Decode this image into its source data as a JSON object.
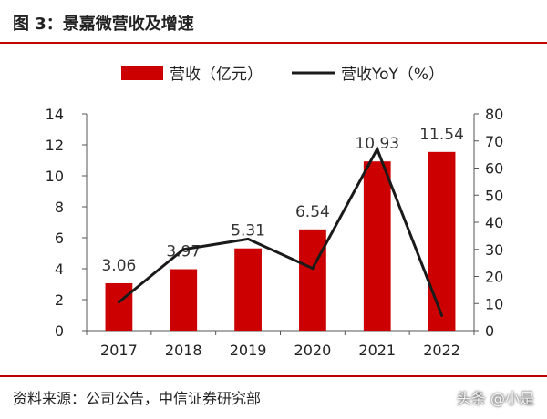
{
  "header": {
    "title": "图 3：景嘉微营收及增速"
  },
  "footer": {
    "source": "资料来源：公司公告，中信证券研究部",
    "watermark": "头条 @小是"
  },
  "colors": {
    "bar": "#cc0000",
    "line": "#1a1a1a",
    "rule": "#c00000"
  },
  "chart_data": {
    "type": "bar",
    "categories": [
      "2017",
      "2018",
      "2019",
      "2020",
      "2021",
      "2022"
    ],
    "series": [
      {
        "name": "营收（亿元）",
        "type": "bar",
        "axis": "left",
        "values": [
          3.06,
          3.97,
          5.31,
          6.54,
          10.93,
          11.54
        ],
        "data_labels": [
          "3.06",
          "3.97",
          "5.31",
          "6.54",
          "10.93",
          "11.54"
        ]
      },
      {
        "name": "营收YoY（%）",
        "type": "line",
        "axis": "right",
        "values": [
          10.5,
          30,
          33.8,
          23,
          67,
          5.6
        ]
      }
    ],
    "y_left": {
      "min": 0,
      "max": 14,
      "ticks": [
        "0",
        "2",
        "4",
        "6",
        "8",
        "10",
        "12",
        "14"
      ]
    },
    "y_right": {
      "min": 0,
      "max": 80,
      "ticks": [
        "0",
        "10",
        "20",
        "30",
        "40",
        "50",
        "60",
        "70",
        "80"
      ]
    },
    "legend_position": "top",
    "grid": false
  }
}
